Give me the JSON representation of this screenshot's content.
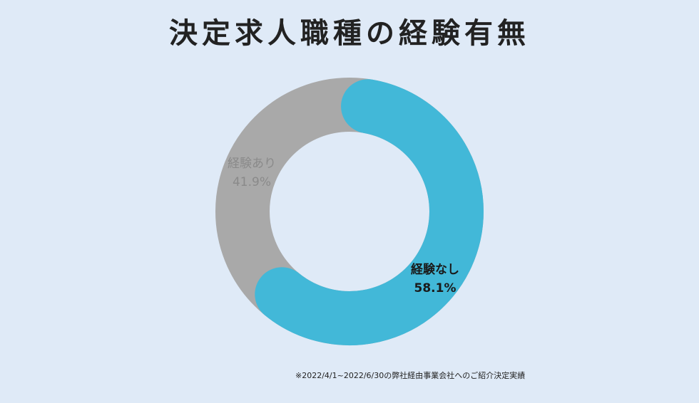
{
  "chart_data": {
    "type": "pie",
    "title": "決定求人職種の経験有無",
    "categories": [
      "経験なし",
      "経験あり"
    ],
    "values": [
      58.1,
      41.9
    ],
    "value_labels": [
      "58.1%",
      "41.9%"
    ],
    "colors": [
      "#42b8d8",
      "#a9a9a9"
    ],
    "label_colors": [
      "#1a1a1a",
      "#8a8a8a"
    ],
    "legend": "none",
    "footnote": "※2022/4/1~2022/6/30の弊社経由事業会社へのご紹介決定実績"
  }
}
